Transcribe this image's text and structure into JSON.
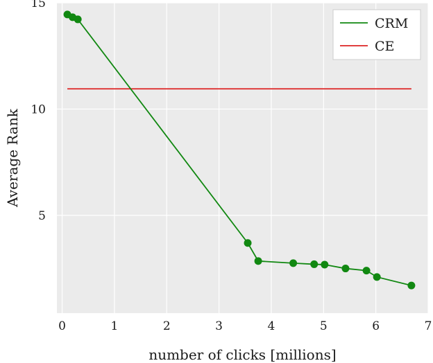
{
  "chart_data": {
    "type": "line",
    "title": "",
    "xlabel": "number of clicks [millions]",
    "ylabel": "Average Rank",
    "xlim": [
      -0.1,
      7.0
    ],
    "ylim": [
      0.4,
      15.0
    ],
    "xticks": [
      0,
      1,
      2,
      3,
      4,
      5,
      6,
      7
    ],
    "yticks": [
      5,
      10,
      15
    ],
    "grid": true,
    "legend_position": "top-right",
    "series": [
      {
        "name": "CRM",
        "color": "#118811",
        "markers": true,
        "x": [
          0.1,
          0.2,
          0.3,
          3.55,
          3.75,
          4.42,
          4.82,
          5.02,
          5.42,
          5.82,
          6.02,
          6.68
        ],
        "y": [
          14.45,
          14.32,
          14.22,
          3.7,
          2.85,
          2.75,
          2.7,
          2.68,
          2.5,
          2.4,
          2.1,
          1.7
        ]
      },
      {
        "name": "CE",
        "color": "#dd2222",
        "markers": false,
        "x": [
          0.1,
          6.68
        ],
        "y": [
          10.95,
          10.95
        ]
      }
    ]
  }
}
